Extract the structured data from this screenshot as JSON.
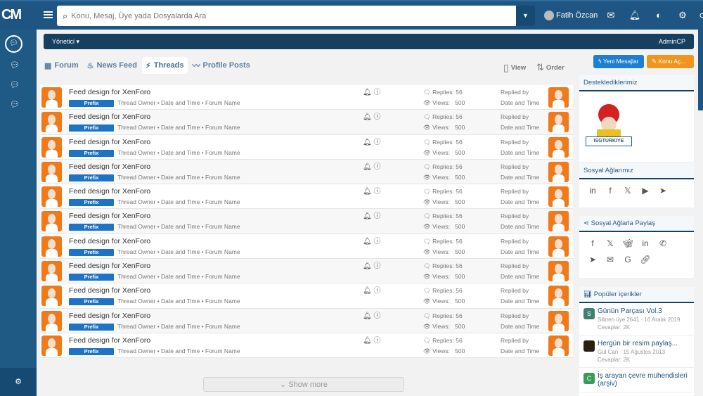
{
  "header": {
    "search_placeholder": "Konu, Mesaj, Üye yada Dosyalarda Ara",
    "user_name": "Fatih Özcan"
  },
  "nav": {
    "menu_label": "Yönetici ▾",
    "admin_label": "AdminCP"
  },
  "tabs": [
    {
      "label": "Forum",
      "icon": "grid-icon"
    },
    {
      "label": "News Feed",
      "icon": "flame-icon"
    },
    {
      "label": "Threads",
      "icon": "bolt-icon",
      "active": true
    },
    {
      "label": "Profile Posts",
      "icon": "wave-icon"
    }
  ],
  "toolbar": {
    "view_label": "View",
    "order_label": "Order",
    "new_posts_label": "Yeni Mesajlar",
    "new_thread_label": "Konu Aç..."
  },
  "colors": {
    "header": "#1e5582",
    "nav": "#173f5f",
    "prefix": "#1f73c4",
    "new_posts": "#1e7fd0",
    "new_thread": "#f0961e"
  },
  "threads": [
    {
      "title": "Feed design for XenForo",
      "prefix": "Prefix",
      "meta": "Thread Owner • Date and Time • Forum Name",
      "replies": "Replies: 56",
      "views_label": "Views:",
      "views": "500",
      "replied_by": "Replied by",
      "date": "Date and Time"
    },
    {
      "title": "Feed design for XenForo",
      "prefix": "Prefix",
      "meta": "Thread Owner • Date and Time • Forum Name",
      "replies": "Replies: 56",
      "views_label": "Views:",
      "views": "500",
      "replied_by": "Replied by",
      "date": "Date and Time"
    },
    {
      "title": "Feed design for XenForo",
      "prefix": "Prefix",
      "meta": "Thread Owner • Date and Time • Forum Name",
      "replies": "Replies: 56",
      "views_label": "Views:",
      "views": "500",
      "replied_by": "Replied by",
      "date": "Date and Time"
    },
    {
      "title": "Feed design for XenForo",
      "prefix": "Prefix",
      "meta": "Thread Owner • Date and Time • Forum Name",
      "replies": "Replies: 56",
      "views_label": "Views:",
      "views": "500",
      "replied_by": "Replied by",
      "date": "Date and Time"
    },
    {
      "title": "Feed design for XenForo",
      "prefix": "Prefix",
      "meta": "Thread Owner • Date and Time • Forum Name",
      "replies": "Replies: 56",
      "views_label": "Views:",
      "views": "500",
      "replied_by": "Replied by",
      "date": "Date and Time"
    },
    {
      "title": "Feed design for XenForo",
      "prefix": "Prefix",
      "meta": "Thread Owner • Date and Time • Forum Name",
      "replies": "Replies: 56",
      "views_label": "Views:",
      "views": "500",
      "replied_by": "Replied by",
      "date": "Date and Time"
    },
    {
      "title": "Feed design for XenForo",
      "prefix": "Prefix",
      "meta": "Thread Owner • Date and Time • Forum Name",
      "replies": "Replies: 56",
      "views_label": "Views:",
      "views": "500",
      "replied_by": "Replied by",
      "date": "Date and Time"
    },
    {
      "title": "Feed design for XenForo",
      "prefix": "Prefix",
      "meta": "Thread Owner • Date and Time • Forum Name",
      "replies": "Replies: 56",
      "views_label": "Views:",
      "views": "500",
      "replied_by": "Replied by",
      "date": "Date and Time"
    },
    {
      "title": "Feed design for XenForo",
      "prefix": "Prefix",
      "meta": "Thread Owner • Date and Time • Forum Name",
      "replies": "Replies: 56",
      "views_label": "Views:",
      "views": "500",
      "replied_by": "Replied by",
      "date": "Date and Time"
    },
    {
      "title": "Feed design for XenForo",
      "prefix": "Prefix",
      "meta": "Thread Owner • Date and Time • Forum Name",
      "replies": "Replies: 56",
      "views_label": "Views:",
      "views": "500",
      "replied_by": "Replied by",
      "date": "Date and Time"
    },
    {
      "title": "Feed design for XenForo",
      "prefix": "Prefix",
      "meta": "Thread Owner • Date and Time • Forum Name",
      "replies": "Replies: 56",
      "views_label": "Views:",
      "views": "500",
      "replied_by": "Replied by",
      "date": "Date and Time"
    }
  ],
  "show_more": "Show more",
  "widgets": {
    "sponsors": {
      "title": "Desteklediklerimiz",
      "logo_text": "ISGTURKIYE"
    },
    "social": {
      "title": "Sosyal Ağlarımız",
      "icons": [
        "linkedin-icon",
        "facebook-icon",
        "x-icon",
        "youtube-icon",
        "telegram-icon"
      ]
    },
    "share": {
      "title": "Sosyal Ağlarla Paylaş",
      "icons": [
        "facebook-icon",
        "x-icon",
        "bluesky-icon",
        "linkedin-icon",
        "whatsapp-icon",
        "telegram-icon",
        "email-icon",
        "google-icon",
        "link-icon"
      ]
    },
    "popular": {
      "title": "Popüler içerikler",
      "items": [
        {
          "avatar": "S",
          "color": "#3f7f72",
          "title": "Günün Parçası Vol.3",
          "meta": "Silinen üye 2641 · 16 Aralık 2019",
          "replies": "Cevaplar: 2K"
        },
        {
          "avatar": "",
          "color": "#2a2010",
          "title": "Hergün bir resim paylaş...",
          "meta": "Gül Can · 15 Ağustos 2013",
          "replies": "Cevaplar: 2K"
        },
        {
          "avatar": "C",
          "color": "#3a9a5a",
          "title": "İş arayan çevre mühendisleri (arşiv)",
          "meta": "",
          "replies": ""
        }
      ]
    }
  }
}
